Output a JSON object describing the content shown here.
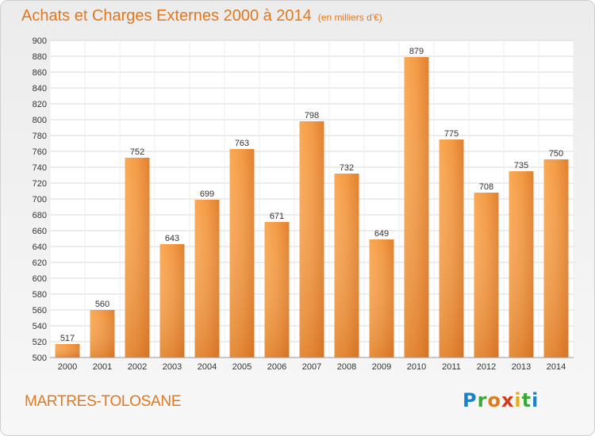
{
  "header": {
    "title": "Achats et Charges Externes 2000 à 2014",
    "unit": "(en milliers d'€)"
  },
  "footer": {
    "town": "MARTRES-TOLOSANE",
    "logo": "Proxiti"
  },
  "colors": {
    "accent": "#e07820",
    "bar_light": "#f7a04c",
    "bar_dark": "#d46e1c"
  },
  "chart_data": {
    "type": "bar",
    "title": "Achats et Charges Externes 2000 à 2014",
    "subtitle": "(en milliers d'€)",
    "categories": [
      "2000",
      "2001",
      "2002",
      "2003",
      "2004",
      "2005",
      "2006",
      "2007",
      "2008",
      "2009",
      "2010",
      "2011",
      "2012",
      "2013",
      "2014"
    ],
    "values": [
      517,
      560,
      752,
      643,
      699,
      763,
      671,
      798,
      732,
      649,
      879,
      775,
      708,
      735,
      750
    ],
    "ylim": [
      500,
      900
    ],
    "yticks": [
      500,
      520,
      540,
      560,
      580,
      600,
      620,
      640,
      660,
      680,
      700,
      720,
      740,
      760,
      780,
      800,
      820,
      840,
      860,
      880,
      900
    ],
    "grid": true,
    "xlabel": "",
    "ylabel": ""
  }
}
